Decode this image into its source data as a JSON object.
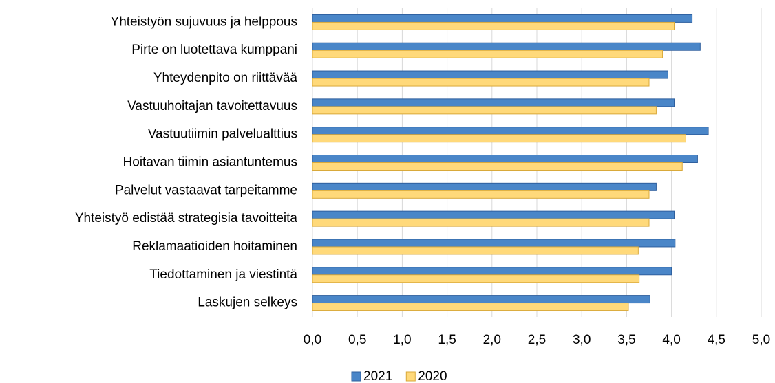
{
  "chart_data": {
    "type": "bar",
    "orientation": "horizontal",
    "categories": [
      "Yhteistyön sujuvuus ja helppous",
      "Pirte on luotettava kumppani",
      "Yhteydenpito on riittävää",
      "Vastuuhoitajan tavoitettavuus",
      "Vastuutiimin palvelualttius",
      "Hoitavan tiimin asiantuntemus",
      "Palvelut vastaavat tarpeitamme",
      "Yhteistyö edistää strategisia tavoitteita",
      "Reklamaatioiden hoitaminen",
      "Tiedottaminen ja viestintä",
      "Laskujen selkeys"
    ],
    "series": [
      {
        "name": "2021",
        "color": "#4a86c8",
        "values": [
          4.23,
          4.32,
          3.96,
          4.03,
          4.41,
          4.29,
          3.83,
          4.03,
          4.04,
          4.0,
          3.76
        ]
      },
      {
        "name": "2020",
        "color": "#ffd97a",
        "values": [
          4.03,
          3.9,
          3.75,
          3.83,
          4.16,
          4.12,
          3.75,
          3.75,
          3.63,
          3.64,
          3.52
        ]
      }
    ],
    "xlim": [
      0,
      5
    ],
    "xticks": [
      {
        "value": 0,
        "label": "0,0"
      },
      {
        "value": 0.5,
        "label": "0,5"
      },
      {
        "value": 1,
        "label": "1,0"
      },
      {
        "value": 1.5,
        "label": "1,5"
      },
      {
        "value": 2,
        "label": "2,0"
      },
      {
        "value": 2.5,
        "label": "2,5"
      },
      {
        "value": 3,
        "label": "3,0"
      },
      {
        "value": 3.5,
        "label": "3,5"
      },
      {
        "value": 4,
        "label": "4,0"
      },
      {
        "value": 4.5,
        "label": "4,5"
      },
      {
        "value": 5,
        "label": "5,0"
      }
    ],
    "grid": true,
    "legend": "bottom"
  }
}
